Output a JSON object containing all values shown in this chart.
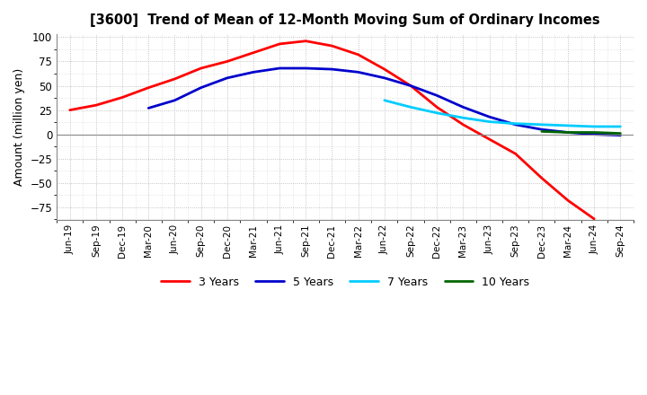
{
  "title": "[3600]  Trend of Mean of 12-Month Moving Sum of Ordinary Incomes",
  "ylabel": "Amount (million yen)",
  "ylim": [
    -88,
    103
  ],
  "yticks": [
    -75,
    -50,
    -25,
    0,
    25,
    50,
    75,
    100
  ],
  "background_color": "#ffffff",
  "plot_background": "#ffffff",
  "grid_color": "#aaaaaa",
  "x_labels": [
    "Jun-19",
    "Sep-19",
    "Dec-19",
    "Mar-20",
    "Jun-20",
    "Sep-20",
    "Dec-20",
    "Mar-21",
    "Jun-21",
    "Sep-21",
    "Dec-21",
    "Mar-22",
    "Jun-22",
    "Sep-22",
    "Dec-22",
    "Mar-23",
    "Jun-23",
    "Sep-23",
    "Dec-23",
    "Mar-24",
    "Jun-24",
    "Sep-24"
  ],
  "series": {
    "3 Years": {
      "color": "#ff0000",
      "values": [
        25,
        30,
        38,
        48,
        57,
        68,
        75,
        84,
        93,
        96,
        91,
        82,
        67,
        50,
        28,
        10,
        -5,
        -20,
        -45,
        -68,
        -87,
        null
      ]
    },
    "5 Years": {
      "color": "#0000cc",
      "values": [
        null,
        null,
        null,
        27,
        35,
        48,
        58,
        64,
        68,
        68,
        67,
        64,
        58,
        50,
        40,
        28,
        18,
        10,
        5,
        2,
        0,
        -1
      ]
    },
    "7 Years": {
      "color": "#00ccff",
      "values": [
        null,
        null,
        null,
        null,
        null,
        null,
        null,
        null,
        null,
        null,
        null,
        null,
        35,
        28,
        22,
        17,
        13,
        11,
        10,
        9,
        8,
        8
      ]
    },
    "10 Years": {
      "color": "#006600",
      "values": [
        null,
        null,
        null,
        null,
        null,
        null,
        null,
        null,
        null,
        null,
        null,
        null,
        null,
        null,
        null,
        null,
        null,
        null,
        3,
        2,
        2,
        1
      ]
    }
  }
}
